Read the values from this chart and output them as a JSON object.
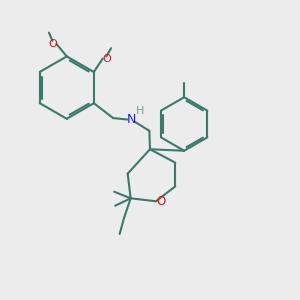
{
  "bg_color": "#ececec",
  "bond_color": "#3a7a6a",
  "bond_width": 1.5,
  "N_color": "#2222cc",
  "O_color": "#cc2020",
  "H_color": "#7a9a9a",
  "figsize": [
    3.0,
    3.0
  ],
  "dpi": 100,
  "xlim": [
    0,
    10
  ],
  "ylim": [
    0,
    10
  ]
}
